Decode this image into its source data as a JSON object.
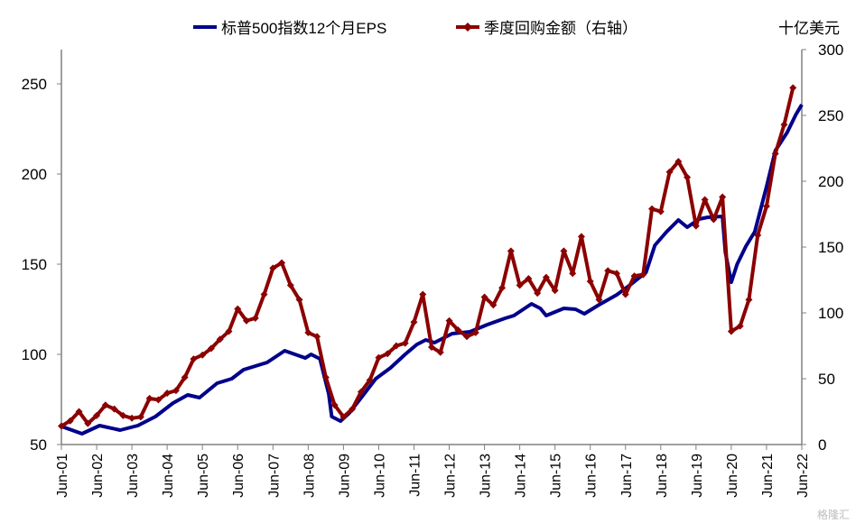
{
  "chart_data": {
    "type": "line",
    "legend": {
      "position": "top",
      "entries": [
        "标普500指数12个月EPS",
        "季度回购金额（右轴）"
      ]
    },
    "right_axis_unit": "十亿美元",
    "x_tick_labels": [
      "Jun-01",
      "Jun-02",
      "Jun-03",
      "Jun-04",
      "Jun-05",
      "Jun-06",
      "Jun-07",
      "Jun-08",
      "Jun-09",
      "Jun-10",
      "Jun-11",
      "Jun-12",
      "Jun-13",
      "Jun-14",
      "Jun-15",
      "Jun-16",
      "Jun-17",
      "Jun-18",
      "Jun-19",
      "Jun-20",
      "Jun-21",
      "Jun-22"
    ],
    "y_left": {
      "ticks": [
        50,
        100,
        150,
        200,
        250
      ],
      "range": [
        50,
        269
      ]
    },
    "y_right": {
      "ticks": [
        0,
        50,
        100,
        150,
        200,
        250,
        300
      ],
      "range": [
        0,
        300
      ]
    },
    "grid": false,
    "series": [
      {
        "name": "标普500指数12个月EPS",
        "axis": "left",
        "color": "#00008B",
        "points": [
          [
            "2001-06",
            60
          ],
          [
            "2001-07",
            59.5
          ],
          [
            "2002-01",
            56
          ],
          [
            "2002-07",
            60.5
          ],
          [
            "2003-02",
            58
          ],
          [
            "2003-08",
            60.5
          ],
          [
            "2004-02",
            65.5
          ],
          [
            "2004-08",
            73
          ],
          [
            "2005-01",
            77.5
          ],
          [
            "2005-05",
            76
          ],
          [
            "2005-11",
            84
          ],
          [
            "2006-04",
            86.5
          ],
          [
            "2006-08",
            91.5
          ],
          [
            "2007-01",
            94
          ],
          [
            "2007-04",
            95.5
          ],
          [
            "2007-10",
            102
          ],
          [
            "2008-05",
            98
          ],
          [
            "2008-07",
            100
          ],
          [
            "2008-10",
            97.5
          ],
          [
            "2009-01",
            78
          ],
          [
            "2009-02",
            65.5
          ],
          [
            "2009-05",
            63
          ],
          [
            "2009-08",
            67.5
          ],
          [
            "2010-01",
            78
          ],
          [
            "2010-05",
            86.5
          ],
          [
            "2010-10",
            92.5
          ],
          [
            "2011-03",
            100
          ],
          [
            "2011-07",
            105.5
          ],
          [
            "2011-10",
            108
          ],
          [
            "2012-01",
            106.5
          ],
          [
            "2012-07",
            111.5
          ],
          [
            "2013-01",
            112.5
          ],
          [
            "2013-07",
            116.5
          ],
          [
            "2014-01",
            120
          ],
          [
            "2014-04",
            121.5
          ],
          [
            "2014-10",
            128
          ],
          [
            "2015-01",
            125.5
          ],
          [
            "2015-03",
            121.5
          ],
          [
            "2015-09",
            125.5
          ],
          [
            "2016-01",
            125
          ],
          [
            "2016-04",
            122.5
          ],
          [
            "2016-09",
            127.5
          ],
          [
            "2017-03",
            133
          ],
          [
            "2017-08",
            139
          ],
          [
            "2018-01",
            145.5
          ],
          [
            "2018-04",
            160.5
          ],
          [
            "2018-08",
            168
          ],
          [
            "2018-12",
            174.5
          ],
          [
            "2019-03",
            170.5
          ],
          [
            "2019-07",
            175
          ],
          [
            "2019-10",
            176
          ],
          [
            "2020-03",
            176.5
          ],
          [
            "2020-04",
            156.5
          ],
          [
            "2020-06",
            140
          ],
          [
            "2020-08",
            150
          ],
          [
            "2020-11",
            160
          ],
          [
            "2021-02",
            168
          ],
          [
            "2021-06",
            193
          ],
          [
            "2021-09",
            213
          ],
          [
            "2022-01",
            223
          ],
          [
            "2022-04",
            233
          ],
          [
            "2022-06",
            238.5
          ]
        ]
      },
      {
        "name": "季度回购金额（右轴）",
        "axis": "right",
        "color": "#8B0000",
        "marker": "diamond",
        "start": "2001-06",
        "frequency": "quarterly",
        "values": [
          14,
          18,
          25,
          16,
          22,
          30,
          27,
          22,
          20,
          21,
          35,
          34,
          39,
          41,
          51,
          65,
          68,
          73,
          80,
          86,
          103,
          94,
          96,
          114,
          134,
          138,
          121,
          110,
          85,
          82,
          51,
          30,
          21,
          27,
          40,
          49,
          66,
          69,
          75,
          77,
          93,
          114,
          74,
          70,
          94,
          87,
          82,
          85,
          112,
          106,
          119,
          147,
          121,
          126,
          115,
          127,
          117,
          147,
          130,
          158,
          124,
          110,
          132,
          130,
          114,
          128,
          129,
          179,
          177,
          207,
          215,
          203,
          166,
          186,
          171,
          188,
          86,
          90,
          110,
          159,
          181,
          221,
          243,
          271
        ]
      }
    ]
  },
  "watermark": "格隆汇"
}
